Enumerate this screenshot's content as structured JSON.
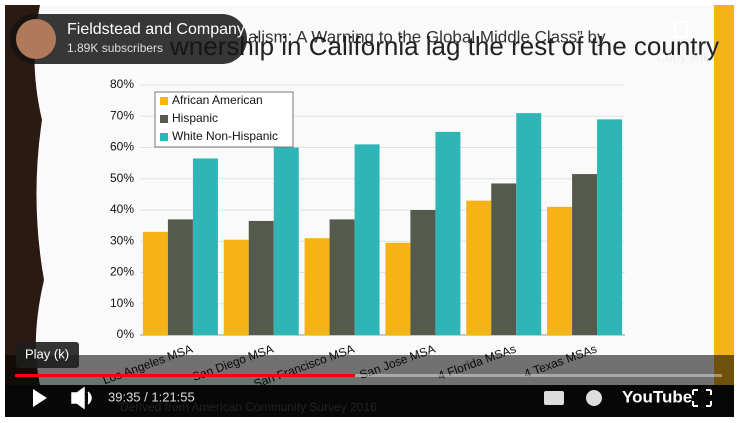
{
  "channel": {
    "name": "Fieldstead and Company",
    "subscribers": "1.89K subscribers"
  },
  "overlay": {
    "copy_link": "Copy link",
    "tooltip": "Play (k)",
    "time": "39:35 / 1:21:55",
    "logo": "YouTube"
  },
  "slide": {
    "header": "alism: A Warning to the Global Middle Class” by",
    "footer": "Derived from American Community Survey 2016"
  },
  "chart_data": {
    "type": "bar",
    "title": "wnership in California lag the rest of the country",
    "categories": [
      "Los Angeles MSA",
      "San Diego MSA",
      "San Francisco MSA",
      "San Jose MSA",
      "4 Florida MSAs",
      "4 Texas MSAs"
    ],
    "series": [
      {
        "name": "African American",
        "color": "#f5b316",
        "values": [
          33,
          30.5,
          31,
          29.5,
          43,
          41
        ]
      },
      {
        "name": "Hispanic",
        "color": "#545a4c",
        "values": [
          37,
          36.5,
          37,
          40,
          48.5,
          51.5
        ]
      },
      {
        "name": "White Non-Hispanic",
        "color": "#2fb5b5",
        "values": [
          56.5,
          60,
          61,
          65,
          71,
          69
        ]
      }
    ],
    "ylim": [
      0,
      80
    ],
    "yticks": [
      {
        "value": 0,
        "label": "0%"
      },
      {
        "value": 10,
        "label": "10%"
      },
      {
        "value": 20,
        "label": "20%"
      },
      {
        "value": 30,
        "label": "30%"
      },
      {
        "value": 40,
        "label": "40%"
      },
      {
        "value": 50,
        "label": "50%"
      },
      {
        "value": 60,
        "label": "60%"
      },
      {
        "value": 70,
        "label": "70%"
      },
      {
        "value": 80,
        "label": "80%"
      }
    ],
    "grid": true
  }
}
